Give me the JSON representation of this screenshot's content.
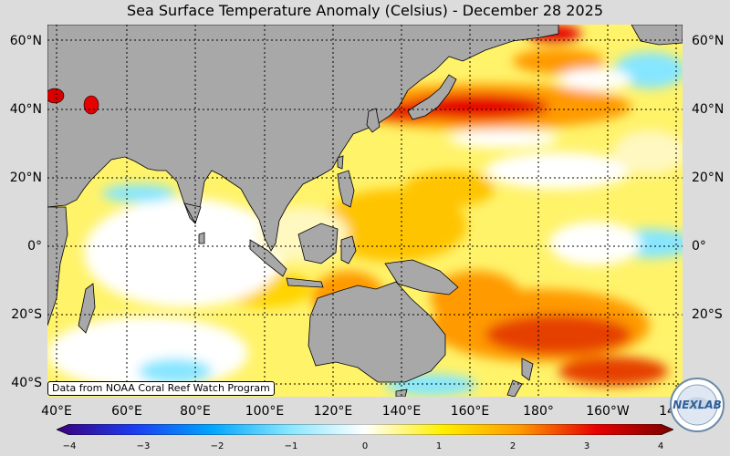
{
  "title": "Sea Surface Temperature Anomaly (Celsius) - December 28 2025",
  "lat_labels": [
    "60°N",
    "40°N",
    "20°N",
    "0°",
    "20°S",
    "40°S"
  ],
  "lon_labels": [
    "40°E",
    "60°E",
    "80°E",
    "100°E",
    "120°E",
    "140°E",
    "160°E",
    "180°",
    "160°W",
    "14"
  ],
  "colorbar": {
    "ticks": [
      "−4",
      "−3",
      "−2",
      "−1",
      "0",
      "1",
      "2",
      "3",
      "4"
    ],
    "range": [
      -4,
      4
    ],
    "colors": [
      "#3a007a",
      "#1c3cf0",
      "#00a4ff",
      "#86e6ff",
      "#ffffff",
      "#fff000",
      "#ff9a00",
      "#e60000",
      "#7a0000"
    ]
  },
  "source_note": "Data from NOAA Coral Reef Watch Program",
  "logo": {
    "text": "NEXLAB",
    "icon": "nexlab-globe-logo"
  },
  "colors": {
    "land": "#a8a8a8",
    "background": "#dcdcdc"
  }
}
